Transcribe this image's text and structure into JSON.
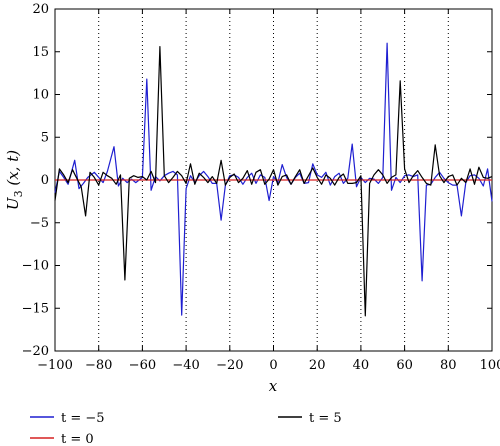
{
  "chart_data": {
    "type": "line",
    "title": "",
    "xlabel": "x",
    "ylabel": "U3 (x, t)",
    "ylabel_parts": {
      "name": "U",
      "sub": "3",
      "args": " (x, t)"
    },
    "xlim": [
      -100,
      100
    ],
    "ylim": [
      -20,
      20
    ],
    "xticks": [
      -100,
      -80,
      -60,
      -40,
      -20,
      0,
      20,
      40,
      60,
      80,
      100
    ],
    "yticks": [
      -20,
      -15,
      -10,
      -5,
      0,
      5,
      10,
      15,
      20
    ],
    "xtick_labels": [
      "−100",
      "−80",
      "−60",
      "−40",
      "−20",
      "0",
      "20",
      "40",
      "60",
      "80",
      "100"
    ],
    "ytick_labels": [
      "−20",
      "−15",
      "−10",
      "−5",
      "0",
      "5",
      "10",
      "15",
      "20"
    ],
    "grid": "vertical dotted lines at x ticks",
    "legend_position": "below plot",
    "series": [
      {
        "name": "t = −5",
        "color": "#1f1fd1",
        "points": [
          [
            -100,
            -1.5
          ],
          [
            -98,
            1.0
          ],
          [
            -96,
            0.3
          ],
          [
            -94,
            -0.5
          ],
          [
            -91,
            2.3
          ],
          [
            -89,
            -1.0
          ],
          [
            -87,
            -0.4
          ],
          [
            -85,
            0.3
          ],
          [
            -82,
            0.9
          ],
          [
            -80,
            0.3
          ],
          [
            -78,
            -0.3
          ],
          [
            -76,
            1.0
          ],
          [
            -73,
            3.9
          ],
          [
            -71,
            -0.7
          ],
          [
            -69,
            0.2
          ],
          [
            -67,
            -0.3
          ],
          [
            -65,
            0.1
          ],
          [
            -63,
            -0.3
          ],
          [
            -60,
            0.3
          ],
          [
            -58,
            11.8
          ],
          [
            -56,
            -1.2
          ],
          [
            -54,
            0.4
          ],
          [
            -52,
            -0.1
          ],
          [
            -50,
            0.5
          ],
          [
            -48,
            0.8
          ],
          [
            -46,
            1.0
          ],
          [
            -44,
            0.6
          ],
          [
            -42,
            -15.8
          ],
          [
            -40,
            -1.0
          ],
          [
            -38,
            0.5
          ],
          [
            -36,
            -0.3
          ],
          [
            -34,
            0.5
          ],
          [
            -32,
            1.0
          ],
          [
            -30,
            0.4
          ],
          [
            -28,
            -0.4
          ],
          [
            -26,
            -0.4
          ],
          [
            -24,
            -4.7
          ],
          [
            -22,
            -0.6
          ],
          [
            -20,
            0.5
          ],
          [
            -18,
            0.6
          ],
          [
            -16,
            0.3
          ],
          [
            -14,
            -0.5
          ],
          [
            -12,
            0.3
          ],
          [
            -10,
            0.8
          ],
          [
            -8,
            -0.4
          ],
          [
            -6,
            0.6
          ],
          [
            -4,
            0.3
          ],
          [
            -2,
            -2.4
          ],
          [
            0,
            0.4
          ],
          [
            2,
            -0.3
          ],
          [
            4,
            1.8
          ],
          [
            6,
            0.3
          ],
          [
            8,
            -0.5
          ],
          [
            10,
            0.3
          ],
          [
            12,
            0.8
          ],
          [
            14,
            -0.4
          ],
          [
            16,
            -0.3
          ],
          [
            18,
            1.9
          ],
          [
            20,
            0.6
          ],
          [
            22,
            0.3
          ],
          [
            24,
            0.9
          ],
          [
            26,
            -0.6
          ],
          [
            28,
            0.4
          ],
          [
            30,
            0.8
          ],
          [
            32,
            -0.4
          ],
          [
            34,
            0.2
          ],
          [
            36,
            4.2
          ],
          [
            38,
            -0.8
          ],
          [
            40,
            0.3
          ],
          [
            42,
            -0.3
          ],
          [
            44,
            0.2
          ],
          [
            46,
            0.1
          ],
          [
            48,
            -0.4
          ],
          [
            50,
            0.3
          ],
          [
            52,
            16.0
          ],
          [
            54,
            -1.2
          ],
          [
            56,
            0.3
          ],
          [
            58,
            -0.3
          ],
          [
            60,
            0.5
          ],
          [
            62,
            0.6
          ],
          [
            64,
            0.4
          ],
          [
            66,
            0.6
          ],
          [
            68,
            -11.8
          ],
          [
            70,
            -0.6
          ],
          [
            72,
            -0.5
          ],
          [
            74,
            0.3
          ],
          [
            76,
            0.9
          ],
          [
            78,
            0.2
          ],
          [
            80,
            -0.3
          ],
          [
            82,
            -0.6
          ],
          [
            84,
            -0.6
          ],
          [
            86,
            -4.2
          ],
          [
            88,
            -0.3
          ],
          [
            90,
            0.5
          ],
          [
            92,
            0.6
          ],
          [
            94,
            0.2
          ],
          [
            96,
            -0.7
          ],
          [
            98,
            1.3
          ],
          [
            100,
            -2.5
          ]
        ]
      },
      {
        "name": "t = 0",
        "color": "#d62020",
        "points": [
          [
            -100,
            0
          ],
          [
            100,
            0
          ]
        ]
      },
      {
        "name": "t = 5",
        "color": "#000000",
        "points": [
          [
            -100,
            -2.4
          ],
          [
            -98,
            1.3
          ],
          [
            -96,
            0.6
          ],
          [
            -94,
            -0.3
          ],
          [
            -92,
            1.2
          ],
          [
            -90,
            0.2
          ],
          [
            -88,
            -0.8
          ],
          [
            -86,
            -4.2
          ],
          [
            -84,
            0.9
          ],
          [
            -82,
            0.3
          ],
          [
            -80,
            -0.6
          ],
          [
            -78,
            0.9
          ],
          [
            -76,
            0.5
          ],
          [
            -74,
            0.2
          ],
          [
            -72,
            -0.5
          ],
          [
            -70,
            0.6
          ],
          [
            -68,
            -11.7
          ],
          [
            -66,
            0.2
          ],
          [
            -64,
            0.5
          ],
          [
            -62,
            0.3
          ],
          [
            -60,
            0.4
          ],
          [
            -58,
            0.0
          ],
          [
            -56,
            1.0
          ],
          [
            -54,
            -0.3
          ],
          [
            -52,
            15.6
          ],
          [
            -50,
            0.5
          ],
          [
            -48,
            -0.3
          ],
          [
            -46,
            0.3
          ],
          [
            -44,
            1.0
          ],
          [
            -42,
            0.5
          ],
          [
            -40,
            -0.4
          ],
          [
            -38,
            1.9
          ],
          [
            -36,
            -0.5
          ],
          [
            -34,
            0.8
          ],
          [
            -32,
            0.3
          ],
          [
            -30,
            -0.3
          ],
          [
            -28,
            0.4
          ],
          [
            -26,
            -0.4
          ],
          [
            -24,
            2.3
          ],
          [
            -22,
            -0.6
          ],
          [
            -20,
            0.3
          ],
          [
            -18,
            0.7
          ],
          [
            -16,
            -0.3
          ],
          [
            -14,
            0.2
          ],
          [
            -12,
            1.1
          ],
          [
            -10,
            -0.5
          ],
          [
            -8,
            0.9
          ],
          [
            -6,
            1.2
          ],
          [
            -4,
            -0.5
          ],
          [
            -2,
            0.1
          ],
          [
            0,
            1.2
          ],
          [
            2,
            -0.6
          ],
          [
            4,
            0.4
          ],
          [
            6,
            0.6
          ],
          [
            8,
            -0.5
          ],
          [
            10,
            0.4
          ],
          [
            12,
            1.2
          ],
          [
            14,
            -0.4
          ],
          [
            16,
            0.5
          ],
          [
            18,
            1.4
          ],
          [
            20,
            0.3
          ],
          [
            22,
            -0.5
          ],
          [
            24,
            0.6
          ],
          [
            26,
            0.2
          ],
          [
            28,
            -0.6
          ],
          [
            30,
            0.3
          ],
          [
            32,
            0.7
          ],
          [
            34,
            -0.4
          ],
          [
            36,
            -0.4
          ],
          [
            38,
            -0.3
          ],
          [
            40,
            0.5
          ],
          [
            42,
            -15.9
          ],
          [
            44,
            -0.4
          ],
          [
            46,
            0.6
          ],
          [
            48,
            1.2
          ],
          [
            50,
            0.6
          ],
          [
            52,
            -0.4
          ],
          [
            54,
            0.3
          ],
          [
            56,
            0.6
          ],
          [
            58,
            11.6
          ],
          [
            60,
            1.3
          ],
          [
            62,
            -0.3
          ],
          [
            64,
            0.5
          ],
          [
            66,
            1.1
          ],
          [
            68,
            0.3
          ],
          [
            70,
            -0.4
          ],
          [
            72,
            -0.6
          ],
          [
            74,
            4.1
          ],
          [
            76,
            0.5
          ],
          [
            78,
            -0.3
          ],
          [
            80,
            0.4
          ],
          [
            82,
            0.6
          ],
          [
            84,
            -0.6
          ],
          [
            86,
            0.2
          ],
          [
            88,
            -0.3
          ],
          [
            90,
            1.3
          ],
          [
            92,
            -0.5
          ],
          [
            94,
            1.5
          ],
          [
            96,
            0.3
          ],
          [
            98,
            0.2
          ],
          [
            100,
            0.4
          ]
        ]
      }
    ]
  }
}
